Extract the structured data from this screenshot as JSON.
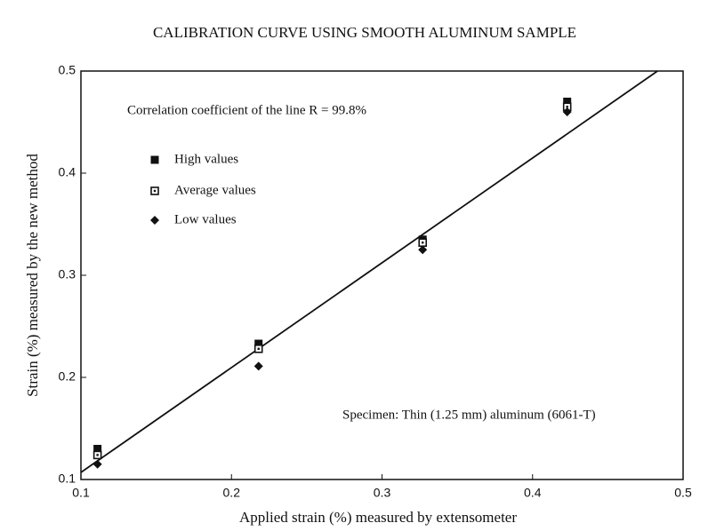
{
  "chart_data": {
    "type": "scatter",
    "title": "CALIBRATION CURVE USING SMOOTH ALUMINUM SAMPLE",
    "x_label": "Applied strain (%) measured by extensometer",
    "y_label": "Strain (%) measured  by the new method",
    "annotations": [
      "Correlation coefficient of the line R = 99.8%",
      "Specimen: Thin (1.25 mm) aluminum (6061-T)"
    ],
    "xlim": [
      0.1,
      0.5
    ],
    "xticks": [
      0.1,
      0.2,
      0.3,
      0.4,
      0.5
    ],
    "ylim": [
      0.1,
      0.5
    ],
    "yticks": [
      0.1,
      0.2,
      0.3,
      0.4,
      0.5
    ],
    "series": [
      {
        "name": "High values",
        "color": "#111111",
        "marker": "square-filled",
        "x": [
          0.111,
          0.218,
          0.327,
          0.423
        ],
        "values": [
          0.13,
          0.233,
          0.335,
          0.47
        ]
      },
      {
        "name": "Average values",
        "color": "#111111",
        "marker": "square-open",
        "x": [
          0.111,
          0.218,
          0.327,
          0.423
        ],
        "values": [
          0.124,
          0.228,
          0.332,
          0.465
        ]
      },
      {
        "name": "Low values",
        "color": "#111111",
        "marker": "diamond",
        "x": [
          0.111,
          0.218,
          0.327,
          0.423
        ],
        "values": [
          0.115,
          0.211,
          0.325,
          0.46
        ]
      }
    ],
    "fit": {
      "color": "#111111",
      "x": [
        0.1,
        0.483
      ],
      "values": [
        0.107,
        0.5
      ]
    }
  }
}
